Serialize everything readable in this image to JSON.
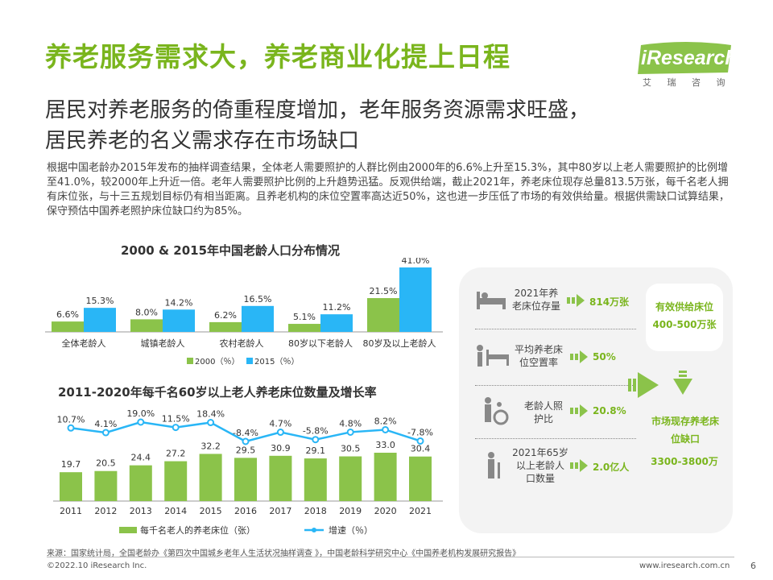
{
  "title": "养老服务需求大，养老商业化提上日程",
  "logo": {
    "name": "iResearch",
    "subtitle": "艾 瑞 咨 询"
  },
  "subtitle_lines": [
    "居民对养老服务的倚重程度增加，老年服务资源需求旺盛，",
    "居民养老的名义需求存在市场缺口"
  ],
  "body": "根据中国老龄办2015年发布的抽样调查结果，全体老人需要照护的人群比例由2000年的6.6%上升至15.3%，其中80岁以上老人需要照护的比例增至41.0%，较2000年上升近一倍。老年人需要照护比例的上升趋势迅猛。反观供给端，截止2021年，养老床位现存总量813.5万张，每千名老人拥有床位张，与十三五规划目标仍有相当距离。且养老机构的床位空置率高达近50%，这也进一步压低了市场的有效供给量。根据供需缺口试算结果，保守预估中国养老照护床位缺口约为85%。",
  "colors": {
    "green": "#8bc34a",
    "blue": "#29b6f6",
    "title_green": "#7ab51d"
  },
  "chart_data": [
    {
      "type": "bar",
      "title": "2000 & 2015年中国老龄人口分布情况",
      "categories": [
        "全体老龄人",
        "城镇老龄人",
        "农村老龄人",
        "80岁以下老龄人",
        "80岁及以上老龄人"
      ],
      "series": [
        {
          "name": "2000（％）",
          "values": [
            6.6,
            8.0,
            6.2,
            5.1,
            21.5
          ],
          "labels": [
            "6.6%",
            "8.0%",
            "6.2%",
            "5.1%",
            "21.5%"
          ],
          "color": "#8bc34a"
        },
        {
          "name": "2015（％）",
          "values": [
            15.3,
            14.2,
            16.5,
            11.2,
            41.0
          ],
          "labels": [
            "15.3%",
            "14.2%",
            "16.5%",
            "11.2%",
            "41.0%"
          ],
          "color": "#29b6f6"
        }
      ],
      "ylim": [
        0,
        41.0
      ],
      "legend": "bottom"
    },
    {
      "type": "bar+line",
      "title": "2011-2020年每千名60岁以上老人养老床位数量及增长率",
      "categories": [
        "2011",
        "2012",
        "2013",
        "2014",
        "2015",
        "2016",
        "2017",
        "2018",
        "2019",
        "2020",
        "2021"
      ],
      "series": [
        {
          "name": "每千名老人的养老床位（张）",
          "type": "bar",
          "values": [
            19.7,
            20.5,
            24.4,
            27.2,
            32.2,
            29.5,
            30.9,
            29.1,
            30.5,
            33.0,
            30.4
          ],
          "labels": [
            "19.7",
            "20.5",
            "24.4",
            "27.2",
            "32.2",
            "29.5",
            "30.9",
            "29.1",
            "30.5",
            "33.0",
            "30.4"
          ],
          "color": "#8bc34a"
        },
        {
          "name": "增速（％）",
          "type": "line",
          "values": [
            10.7,
            4.1,
            19.0,
            11.5,
            18.4,
            -8.4,
            4.7,
            -5.8,
            4.8,
            8.2,
            -7.8
          ],
          "labels": [
            "10.7%",
            "4.1%",
            "19.0%",
            "11.5%",
            "18.4%",
            "-8.4%",
            "4.7%",
            "-5.8%",
            "4.8%",
            "8.2%",
            "-7.8%"
          ],
          "color": "#29b6f6"
        }
      ],
      "ylim": [
        0,
        33.0
      ],
      "legend": "bottom"
    }
  ],
  "panel": {
    "items": [
      {
        "label": "2021年养老床位存量",
        "value": "814万张",
        "icon": "bed-icon"
      },
      {
        "label": "平均养老床位空置率",
        "value": "50%",
        "icon": "empty-bed-icon"
      },
      {
        "label": "老龄人照护比",
        "value": "20.8%",
        "icon": "caregiver-icon"
      },
      {
        "label": "2021年65岁以上老龄人口数量",
        "value": "2.0亿人",
        "icon": "elderly-icon"
      }
    ],
    "supply_label": "有效供给床位",
    "supply_value": "400-500万张",
    "gap_label": "市场现存养老床位缺口",
    "gap_value": "3300-3800万"
  },
  "source": "来源：国家统计局，全国老龄办《第四次中国城乡老年人生活状况抽样调查 》，中国老龄科学研究中心《中国养老机构发展研究报告》",
  "copyright": "©2022.10 iResearch Inc.",
  "website": "www.iresearch.com.cn",
  "page_number": "6"
}
